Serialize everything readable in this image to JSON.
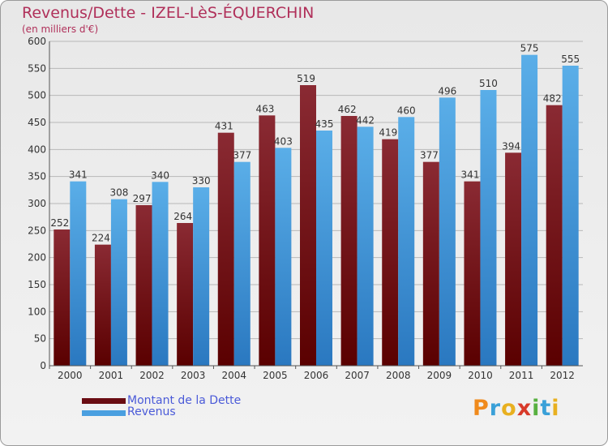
{
  "title": "Revenus/Dette - IZEL-LèS-ÉQUERCHIN",
  "subtitle": "(en milliers d'€)",
  "logo_text": "Proxiti",
  "colors": {
    "dette": "#7a1a20",
    "revenus": "#4a9fe0",
    "grid": "#b8b8b8",
    "title": "#b0305a",
    "legend_text": "#4a5ad8"
  },
  "chart_data": {
    "type": "bar",
    "title": "Revenus/Dette - IZEL-LèS-ÉQUERCHIN",
    "ylabel": "(en milliers d'€)",
    "ylim": [
      0,
      600
    ],
    "yticks": [
      0,
      50,
      100,
      150,
      200,
      250,
      300,
      350,
      400,
      450,
      500,
      550,
      600
    ],
    "categories": [
      "2000",
      "2001",
      "2002",
      "2003",
      "2004",
      "2005",
      "2006",
      "2007",
      "2008",
      "2009",
      "2010",
      "2011",
      "2012"
    ],
    "series": [
      {
        "name": "Montant de la Dette",
        "values": [
          252,
          224,
          297,
          264,
          431,
          463,
          519,
          462,
          419,
          377,
          341,
          394,
          482
        ]
      },
      {
        "name": "Revenus",
        "values": [
          341,
          308,
          340,
          330,
          377,
          403,
          435,
          442,
          460,
          496,
          510,
          575,
          555
        ]
      }
    ],
    "grid": true,
    "legend_position": "bottom-left"
  }
}
